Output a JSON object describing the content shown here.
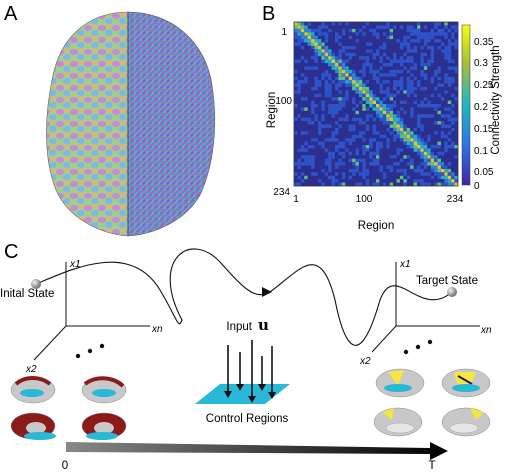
{
  "panels": {
    "a": {
      "letter": "A"
    },
    "b": {
      "letter": "B",
      "xlabel": "Region",
      "ylabel": "Region",
      "colorbar_label": "Connectivity Strength",
      "x_ticks": [
        "1",
        "100",
        "234"
      ],
      "y_ticks": [
        "1",
        "100",
        "234"
      ],
      "colorbar_ticks": [
        "0.35",
        "0.3",
        "0.25",
        "0.2",
        "0.15",
        "0.1",
        "0.05",
        "0"
      ]
    },
    "c": {
      "letter": "C",
      "initial_state": "Inital State",
      "target_state": "Target State",
      "input_label": "Input",
      "input_symbol": "u",
      "control_regions": "Control Regions",
      "axis_x1": "x1",
      "axis_x2": "x2",
      "axis_xn": "xn",
      "time_start": "0",
      "time_end": "T"
    }
  },
  "chart_data": {
    "type": "heatmap",
    "xlabel": "Region",
    "ylabel": "Region",
    "x_range": [
      1,
      234
    ],
    "y_range": [
      1,
      234
    ],
    "colorbar": {
      "label": "Connectivity Strength",
      "range": [
        0,
        0.35
      ]
    }
  },
  "colors": {
    "matrix_background": "#2b2f8f",
    "colormap_low": "#3e26a8",
    "colormap_high": "#f9fb0e",
    "control_plane": "#29b8d8",
    "brain_highlight_red": "#8b1a1a",
    "brain_highlight_yellow": "#f5e642",
    "brain_gray": "#c8c8c8"
  }
}
